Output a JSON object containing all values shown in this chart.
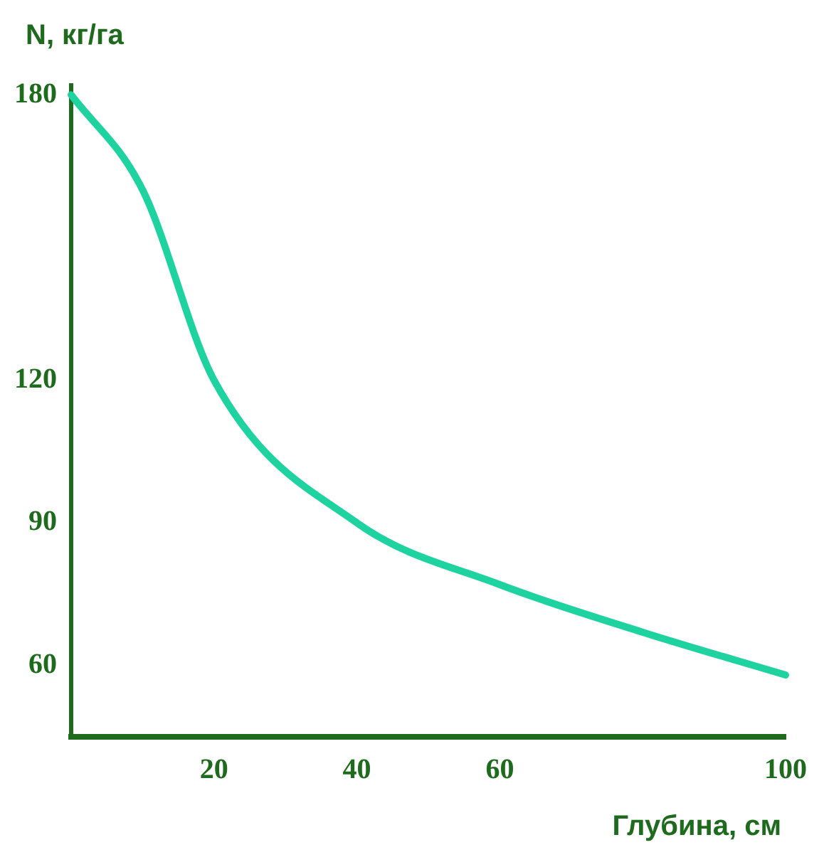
{
  "chart_data": {
    "type": "line",
    "xlabel": "Глубина, см",
    "ylabel": "N, кг/га",
    "x": [
      0,
      10,
      20,
      40,
      60,
      80,
      100
    ],
    "series": [
      {
        "color": "#1fd3a0",
        "values": [
          180,
          160,
          120,
          90,
          77,
          67,
          58
        ]
      }
    ],
    "xlim": [
      0,
      100
    ],
    "xticks": [
      20,
      40,
      60,
      100
    ],
    "ylim": [
      45,
      182
    ],
    "yticks": [
      60,
      90,
      120,
      180
    ],
    "grid": false,
    "legend": false,
    "marker": "none",
    "line_style": "solid"
  }
}
